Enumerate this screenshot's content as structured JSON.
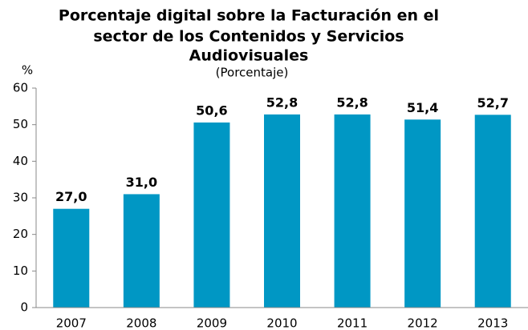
{
  "chart_data": {
    "type": "bar",
    "title": [
      "Porcentaje digital sobre la Facturación en el",
      "sector de los Contenidos y Servicios",
      "Audiovisuales"
    ],
    "subtitle": "(Porcentaje)",
    "y_label": "%",
    "categories": [
      "2007",
      "2008",
      "2009",
      "2010",
      "2011",
      "2012",
      "2013"
    ],
    "values": [
      27.0,
      31.0,
      50.6,
      52.8,
      52.8,
      51.4,
      52.7
    ],
    "value_labels": [
      "27,0",
      "31,0",
      "50,6",
      "52,8",
      "52,8",
      "51,4",
      "52,7"
    ],
    "color": "#0097c4",
    "ylim": [
      0,
      60
    ],
    "yticks": [
      0,
      10,
      20,
      30,
      40,
      50,
      60
    ],
    "grid": false
  }
}
